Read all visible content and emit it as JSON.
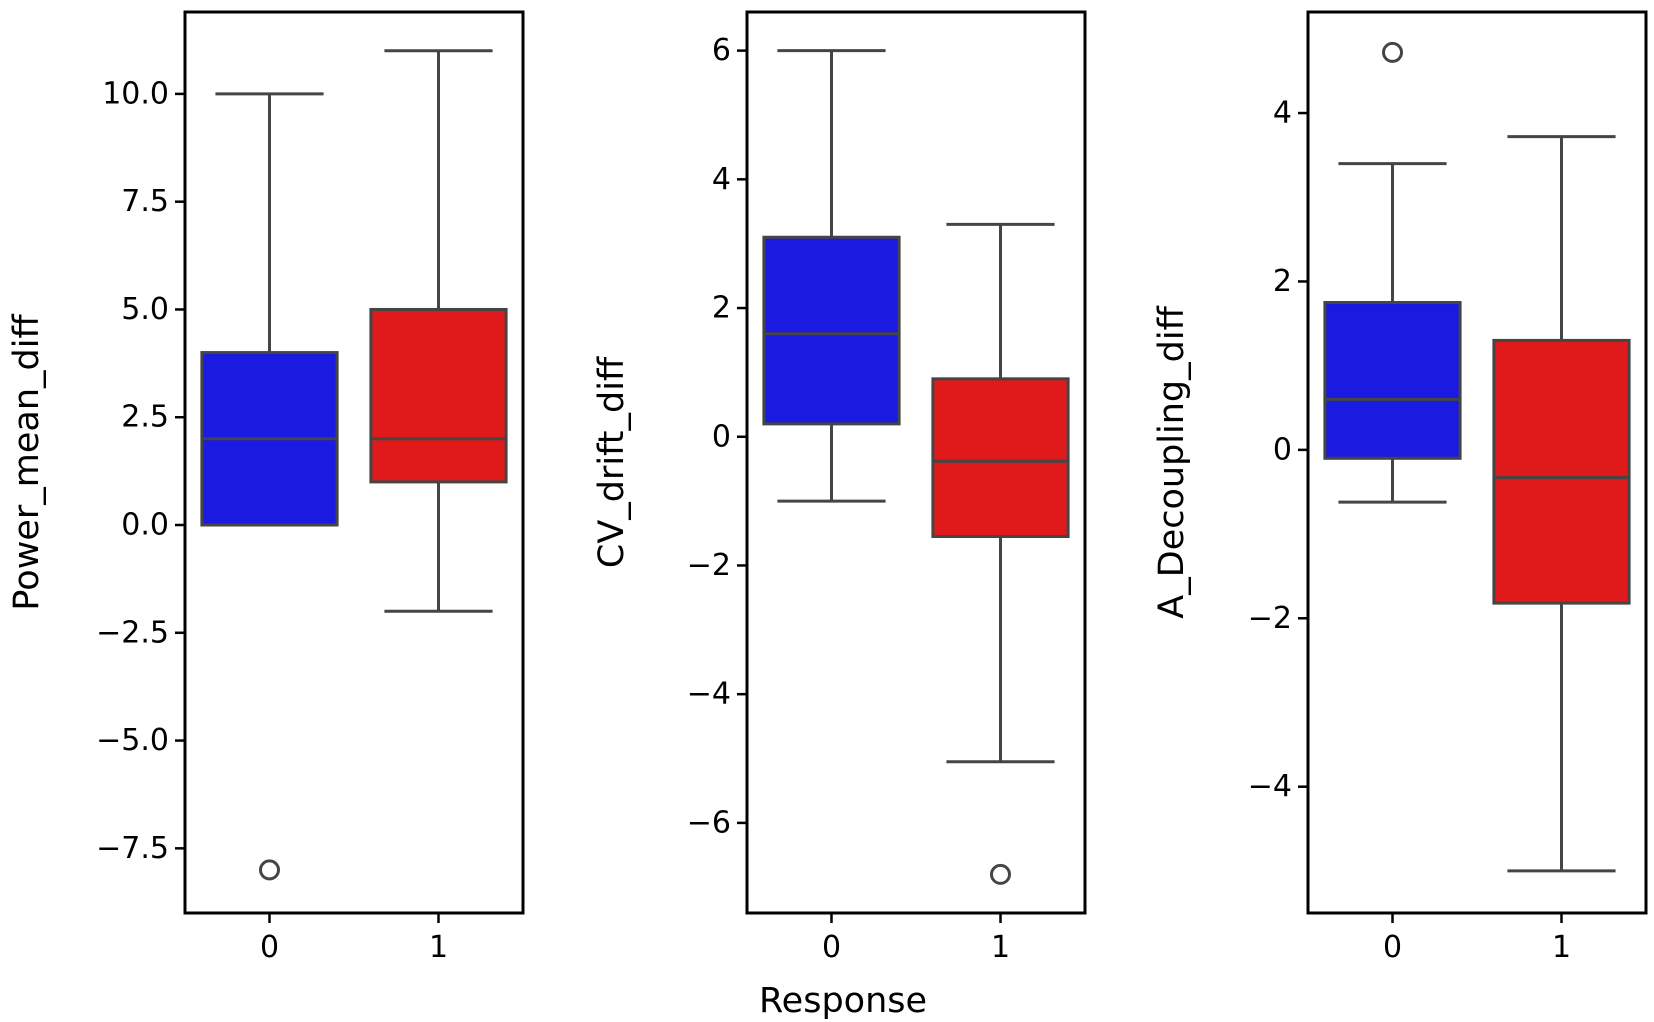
{
  "chart_data": [
    {
      "type": "box",
      "title": "",
      "xlabel": "",
      "ylabel": "Power_mean_diff",
      "ylim": [
        -9.0,
        11.9
      ],
      "yticks": [
        -7.5,
        -5.0,
        -2.5,
        0.0,
        2.5,
        5.0,
        7.5,
        10.0
      ],
      "ytick_labels": [
        "−7.5",
        "−5.0",
        "−2.5",
        "0.0",
        "2.5",
        "5.0",
        "7.5",
        "10.0"
      ],
      "categories": [
        "0",
        "1"
      ],
      "boxes": [
        {
          "category": "0",
          "whisker_low": 0.0,
          "q1": 0.0,
          "median": 2.0,
          "q3": 4.0,
          "whisker_high": 10.0,
          "outliers": [
            -8.0
          ],
          "color": "#1a1ae0"
        },
        {
          "category": "1",
          "whisker_low": -2.0,
          "q1": 1.0,
          "median": 2.0,
          "q3": 5.0,
          "whisker_high": 11.0,
          "outliers": [],
          "color": "#e01a1a"
        }
      ]
    },
    {
      "type": "box",
      "title": "",
      "xlabel": "Response",
      "ylabel": "CV_drift_diff",
      "ylim": [
        -7.4,
        6.6
      ],
      "yticks": [
        -6,
        -4,
        -2,
        0,
        2,
        4,
        6
      ],
      "ytick_labels": [
        "−6",
        "−4",
        "−2",
        "0",
        "2",
        "4",
        "6"
      ],
      "categories": [
        "0",
        "1"
      ],
      "boxes": [
        {
          "category": "0",
          "whisker_low": -1.0,
          "q1": 0.2,
          "median": 1.6,
          "q3": 3.1,
          "whisker_high": 6.0,
          "outliers": [],
          "color": "#1a1ae0"
        },
        {
          "category": "1",
          "whisker_low": -5.05,
          "q1": -1.55,
          "median": -0.38,
          "q3": 0.9,
          "whisker_high": 3.3,
          "outliers": [
            -6.8
          ],
          "color": "#e01a1a"
        }
      ]
    },
    {
      "type": "box",
      "title": "",
      "xlabel": "",
      "ylabel": "A_Decoupling_diff",
      "ylim": [
        -5.5,
        5.2
      ],
      "yticks": [
        -4,
        -2,
        0,
        2,
        4
      ],
      "ytick_labels": [
        "−4",
        "−2",
        "0",
        "2",
        "4"
      ],
      "categories": [
        "0",
        "1"
      ],
      "boxes": [
        {
          "category": "0",
          "whisker_low": -0.62,
          "q1": -0.1,
          "median": 0.6,
          "q3": 1.75,
          "whisker_high": 3.4,
          "outliers": [
            4.72
          ],
          "color": "#1a1ae0"
        },
        {
          "category": "1",
          "whisker_low": -5.0,
          "q1": -1.82,
          "median": -0.33,
          "q3": 1.3,
          "whisker_high": 3.72,
          "outliers": [],
          "color": "#e01a1a"
        }
      ]
    }
  ]
}
